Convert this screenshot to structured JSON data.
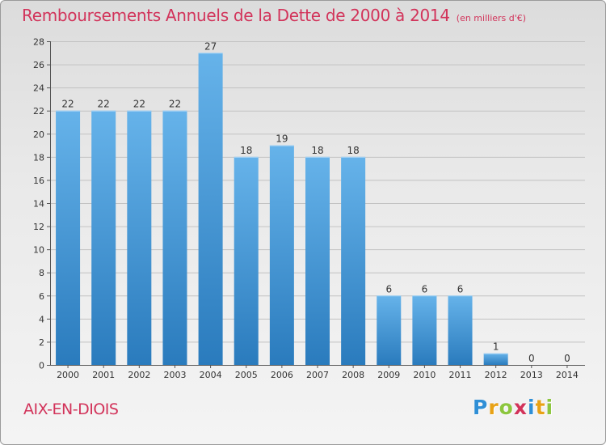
{
  "header": {
    "title": "Remboursements Annuels de la Dette de 2000 à 2014",
    "subtitle": "(en milliers d'€)"
  },
  "commune": "AIX-EN-DIOIS",
  "logo": {
    "letters": [
      "P",
      "r",
      "o",
      "x",
      "i",
      "t",
      "i"
    ],
    "colors": [
      "#2f8fd6",
      "#e8a215",
      "#8cc63e",
      "#d2335a",
      "#2f8fd6",
      "#e8a215",
      "#8cc63e"
    ]
  },
  "colors": {
    "bar_light": "#66b3ea",
    "bar_dark": "#2a7bbd",
    "grid": "#c2c2c2",
    "axis": "#555555"
  },
  "chart_data": {
    "type": "bar",
    "title": "Remboursements Annuels de la Dette de 2000 à 2014",
    "xlabel": "",
    "ylabel": "",
    "categories": [
      "2000",
      "2001",
      "2002",
      "2003",
      "2004",
      "2005",
      "2006",
      "2007",
      "2008",
      "2009",
      "2010",
      "2011",
      "2012",
      "2013",
      "2014"
    ],
    "values": [
      22,
      22,
      22,
      22,
      27,
      18,
      19,
      18,
      18,
      6,
      6,
      6,
      1,
      0,
      0
    ],
    "ylim": [
      0,
      28
    ],
    "yticks": [
      0,
      2,
      4,
      6,
      8,
      10,
      12,
      14,
      16,
      18,
      20,
      22,
      24,
      26,
      28
    ],
    "grid": true
  }
}
